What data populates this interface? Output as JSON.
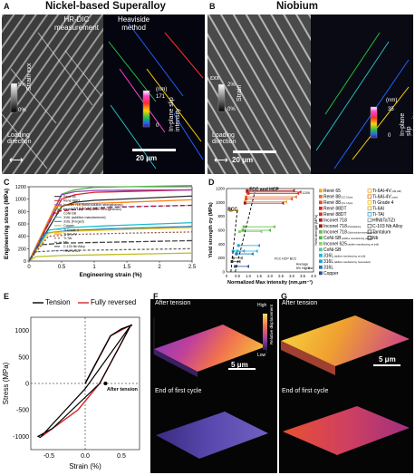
{
  "panels": {
    "A": "A",
    "B": "B",
    "C": "C",
    "D": "D",
    "E": "E",
    "F": "F",
    "G": "G"
  },
  "panel_a": {
    "title": "Nickel-based Superalloy",
    "left_label": "HR-DIC\nmeasurement",
    "right_label": "Heaviside\nmethod",
    "strain_max": "5%",
    "strain_min": "0%",
    "strain_title": "Strain εxx",
    "slip_unit": "(nm)",
    "slip_max": "171",
    "slip_min": "0",
    "slip_title": "In-plane slip\nintensity",
    "loading": "Loading\ndirection",
    "scale": "20 μm"
  },
  "panel_b": {
    "title": "Niobium",
    "strain_top": "εxx",
    "strain_max": "2%",
    "strain_min": "0%",
    "strain_title": "Strain",
    "slip_unit": "(nm)",
    "slip_max": "35",
    "slip_min": "0",
    "slip_title": "In-plane slip\nintensity",
    "loading": "Loading\ndirection",
    "scale": "20 μm"
  },
  "panel_f": {
    "after": "After tension",
    "end": "End of first cycle",
    "scale": "5 μm",
    "high": "High",
    "low": "Low",
    "axis": "Relative displacement"
  },
  "panel_g": {
    "after": "After tension",
    "end": "End of first cycle",
    "scale": "5 μm"
  },
  "chart_data": [
    {
      "type": "line",
      "id": "C",
      "xlabel": "Engineering strain (%)",
      "ylabel": "Engineering stress (MPa)",
      "xlim": [
        0,
        2.5
      ],
      "ylim": [
        0,
        1200
      ],
      "xticks": [
        "0",
        "0.5",
        "1",
        "1.5",
        "2",
        "2.5"
      ],
      "yticks": [
        "0",
        "200",
        "400",
        "600",
        "800",
        "1000",
        "1200"
      ],
      "legend": [
        "René 65",
        "René 88DT",
        "Inconel 718 (Solid-solution strengthened)",
        "Inconel 718 (Precipitation strengthened)",
        "CoNi-SB",
        "316L (additive manufactured)",
        "316L (Forged)",
        "Copper",
        "Ti Grade 4",
        "Ti-6Al-4V",
        "Ti-TAl",
        "Nb",
        "C-103 Nb Alloy",
        "HfNbTaTiZr"
      ],
      "series": [
        {
          "name": "René 65",
          "color": "#2a2a2a",
          "dash": "",
          "x": [
            0,
            0.5,
            0.7,
            1,
            2.5
          ],
          "y": [
            0,
            880,
            950,
            980,
            1050
          ]
        },
        {
          "name": "René 88DT",
          "color": "#d62728",
          "dash": "",
          "x": [
            0,
            0.5,
            0.7,
            1,
            2.5
          ],
          "y": [
            0,
            1000,
            1070,
            1110,
            1150
          ]
        },
        {
          "name": "Inconel 718 (Precipitation strengthened)",
          "color": "#4db848",
          "dash": "",
          "x": [
            0,
            0.5,
            0.7,
            1,
            2.5
          ],
          "y": [
            0,
            1080,
            1150,
            1190,
            1220
          ]
        },
        {
          "name": "Inconel 718 (Solid-solution strengthened)",
          "color": "#9b3fb8",
          "dash": "",
          "x": [
            0,
            0.5,
            0.7,
            1,
            2.5
          ],
          "y": [
            0,
            1070,
            1120,
            1140,
            1150
          ]
        },
        {
          "name": "CoNi-SB",
          "color": "#c00000",
          "dash": "5,3",
          "x": [
            0,
            0.4,
            0.7,
            1.3,
            2.5
          ],
          "y": [
            0,
            800,
            830,
            870,
            900
          ]
        },
        {
          "name": "316L (additive manufactured)",
          "color": "#17becf",
          "dash": "",
          "x": [
            0,
            0.3,
            0.6,
            1.2,
            2.5
          ],
          "y": [
            0,
            500,
            540,
            570,
            620
          ]
        },
        {
          "name": "316L (Forged)",
          "color": "#1f77b4",
          "dash": "",
          "x": [
            0,
            0.25,
            0.6,
            1.2,
            2.5
          ],
          "y": [
            0,
            450,
            490,
            520,
            560
          ]
        },
        {
          "name": "Ti-6Al-4V",
          "color": "#ff7f0e",
          "dash": "",
          "x": [
            0,
            0.4,
            0.7,
            1.5,
            2.5
          ],
          "y": [
            0,
            880,
            920,
            950,
            990
          ]
        },
        {
          "name": "Ti Grade 4",
          "color": "#f0c419",
          "dash": "",
          "x": [
            0,
            0.3,
            0.6,
            1.5,
            2.5
          ],
          "y": [
            0,
            450,
            480,
            510,
            540
          ]
        },
        {
          "name": "Ti-TAl",
          "color": "#8c564b",
          "dash": "2,2",
          "x": [
            0,
            0.3,
            0.7,
            1.5,
            2.5
          ],
          "y": [
            0,
            400,
            430,
            450,
            470
          ]
        },
        {
          "name": "Copper",
          "color": "#bcbd22",
          "dash": "",
          "x": [
            0,
            0.1,
            0.5,
            1.5,
            2.5
          ],
          "y": [
            0,
            70,
            90,
            110,
            130
          ]
        },
        {
          "name": "Nb",
          "color": "#666666",
          "dash": "3,2",
          "x": [
            0,
            0.1,
            0.5,
            1.5,
            2.5
          ],
          "y": [
            0,
            150,
            170,
            185,
            200
          ]
        },
        {
          "name": "C-103 Nb Alloy",
          "color": "#444444",
          "dash": "6,2",
          "x": [
            0,
            0.15,
            0.5,
            1.5,
            2.5
          ],
          "y": [
            0,
            260,
            290,
            310,
            330
          ]
        },
        {
          "name": "HfNbTaTiZr",
          "color": "#3a5fcd",
          "dash": "1,2",
          "x": [
            0,
            0.4,
            0.7,
            1.5,
            2.5
          ],
          "y": [
            0,
            820,
            860,
            880,
            900
          ]
        }
      ]
    },
    {
      "type": "scatter",
      "id": "D",
      "xlabel": "Normalized Max intensity (nm.μm⁻¹)",
      "ylabel": "Yield strength σy (MPa)",
      "xlim": [
        0,
        4
      ],
      "ylim": [
        0,
        1200
      ],
      "xticks": [
        "0",
        "0.5",
        "1.0",
        "1.5",
        "2.0",
        "2.5",
        "3.0",
        "3.5",
        "4.0"
      ],
      "yticks": [
        "0",
        "200",
        "400",
        "600",
        "800",
        "1000",
        "1200"
      ],
      "annotations": [
        "FCC and HCP",
        "BCC"
      ],
      "key_title": "FCC  HCP  BCC",
      "key_rows": [
        "Average",
        "5% Highest"
      ],
      "inset": {
        "ylabel": "Yield strength (MPa)",
        "ymax": "1200",
        "ymin": "0"
      },
      "points": [
        {
          "name": "René 65",
          "color": "#f5a623",
          "avg": [
            0.85,
            1010
          ],
          "high": [
            2.75,
            1010
          ]
        },
        {
          "name": "René 88",
          "color": "#e8702a",
          "avg": [
            0.9,
            1080
          ],
          "high": [
            3.2,
            1080
          ]
        },
        {
          "name": "René 88 (2)",
          "color": "#e04e1f",
          "avg": [
            0.9,
            1050
          ],
          "high": [
            3.0,
            1050
          ]
        },
        {
          "name": "René 88DT",
          "color": "#d62728",
          "avg": [
            1.0,
            1130
          ],
          "high": [
            3.3,
            1130
          ]
        },
        {
          "name": "René 88DT (2)",
          "color": "#c0392b",
          "avg": [
            0.95,
            1150
          ],
          "high": [
            3.4,
            1150
          ]
        },
        {
          "name": "Inconel 718",
          "color": "#b02020",
          "avg": [
            0.95,
            1170
          ],
          "high": [
            3.1,
            1170
          ]
        },
        {
          "name": "Inconel 718 (2)",
          "color": "#9a1a1a",
          "avg": [
            0.85,
            990
          ],
          "high": [
            2.6,
            990
          ]
        },
        {
          "name": "Inconel 718 ss",
          "color": "#6abf45",
          "avg": [
            0.8,
            650
          ],
          "high": [
            2.2,
            650
          ]
        },
        {
          "name": "CoNi-SB",
          "color": "#4db848",
          "avg": [
            0.75,
            600
          ],
          "high": [
            2.0,
            600
          ]
        },
        {
          "name": "Inconel 625",
          "color": "#8fd16a",
          "avg": [
            0.6,
            580
          ],
          "high": [
            1.6,
            580
          ]
        },
        {
          "name": "316L",
          "color": "#17becf",
          "avg": [
            0.5,
            300
          ],
          "high": [
            1.4,
            300
          ]
        },
        {
          "name": "316L (2)",
          "color": "#1f9fd6",
          "avg": [
            0.55,
            380
          ],
          "high": [
            1.5,
            380
          ]
        },
        {
          "name": "316L (3)",
          "color": "#1f77b4",
          "avg": [
            0.45,
            260
          ],
          "high": [
            1.2,
            260
          ]
        },
        {
          "name": "Copper",
          "color": "#2c4f8f",
          "avg": [
            0.4,
            80
          ],
          "high": [
            1.0,
            80
          ]
        },
        {
          "name": "Ti-6Al-4V",
          "color": "#f5a623",
          "avg": [
            0.2,
            880
          ],
          "high": [
            0.5,
            880
          ]
        },
        {
          "name": "Ti-TAl",
          "color": "#3aa0d8",
          "avg": [
            0.3,
            300
          ],
          "high": [
            0.8,
            300
          ]
        },
        {
          "name": "Nb",
          "color": "#555555",
          "avg": [
            0.25,
            150
          ],
          "high": [
            0.6,
            150
          ]
        },
        {
          "name": "Tantalum",
          "color": "#777777",
          "avg": [
            0.3,
            200
          ],
          "high": [
            0.7,
            200
          ]
        }
      ],
      "legend": [
        {
          "label": "René 65",
          "sub": "",
          "color": "#f5a623"
        },
        {
          "label": "René 88",
          "sub": "(CG: 61μm)",
          "color": "#e8702a"
        },
        {
          "label": "René 88",
          "sub": "(CG: 13μm)",
          "color": "#e04e1f"
        },
        {
          "label": "René 88DT",
          "sub": "",
          "color": "#d62728"
        },
        {
          "label": "René 88DT",
          "sub": "",
          "color": "#c0392b"
        },
        {
          "label": "Inconel 718",
          "sub": "",
          "color": "#b02020"
        },
        {
          "label": "Inconel 718",
          "sub": "(Precipitation)",
          "color": "#9a1a1a"
        },
        {
          "label": "Inconel 718",
          "sub": "(Solid-solution strengthened)",
          "color": "#6abf45"
        },
        {
          "label": "CoNi-SB",
          "sub": "(additive manufacturing, as built)",
          "color": "#4db848"
        },
        {
          "label": "Inconel 625",
          "sub": "(additive manufacturing, as built)",
          "color": "#8fd16a"
        },
        {
          "label": "CoNi-SB",
          "sub": "",
          "color": "#5ec2a0"
        },
        {
          "label": "316L",
          "sub": "(additive manufacturing, as built)",
          "color": "#17becf"
        },
        {
          "label": "316L",
          "sub": "(additive manufacturing, heat-treated)",
          "color": "#1f9fd6"
        },
        {
          "label": "316L",
          "sub": "",
          "color": "#1f77b4"
        },
        {
          "label": "Copper",
          "sub": "",
          "color": "#2c4f8f"
        }
      ],
      "legend2": [
        {
          "label": "Ti-6Al-4V",
          "sub": "(AM,HIP)",
          "color": "#f5a623"
        },
        {
          "label": "Ti-6Al-4V",
          "sub": "(cast)",
          "color": "#e8702a"
        },
        {
          "label": "Ti Grade 4",
          "sub": "",
          "color": "#f0c419"
        },
        {
          "label": "Ti-6Al",
          "sub": "",
          "color": "#d4a017"
        },
        {
          "label": "Ti-TAl",
          "sub": "",
          "color": "#3aa0d8"
        },
        {
          "label": "HfNbTaTiZr",
          "sub": "",
          "color": "#888888"
        },
        {
          "label": "C-103 Nb Alloy",
          "sub": "",
          "color": "#666666"
        },
        {
          "label": "Tantalum",
          "sub": "",
          "color": "#555555"
        },
        {
          "label": "Nb",
          "sub": "",
          "color": "#333333"
        }
      ]
    },
    {
      "type": "line",
      "id": "E",
      "legend": [
        "Tension",
        "Fully reversed"
      ],
      "xlabel": "Strain (%)",
      "ylabel": "Stress (MPa)",
      "xlim": [
        -0.75,
        0.75
      ],
      "ylim": [
        -1250,
        1250
      ],
      "xticks": [
        "-0.5",
        "0.0",
        "0.5"
      ],
      "yticks": [
        "-1000",
        "-500",
        "0",
        "500",
        "1000"
      ],
      "annotation": "After tension",
      "tension": {
        "color": "#000000",
        "x": [
          0,
          0.35,
          0.5,
          0.6,
          0.65
        ],
        "y": [
          0,
          900,
          1030,
          1080,
          1100
        ]
      },
      "reversed": {
        "color": "#d62728",
        "x": [
          0,
          0.35,
          0.6,
          0.63,
          0.2,
          -0.1,
          -0.5,
          -0.6
        ],
        "y": [
          0,
          900,
          1080,
          1100,
          0,
          -500,
          -900,
          -1000
        ]
      },
      "unload": {
        "color": "#000000",
        "x": [
          0.63,
          0.2,
          -0.45,
          -0.65,
          -0.62,
          0.0,
          0.63
        ],
        "y": [
          1100,
          0,
          -850,
          -1000,
          -1020,
          -100,
          1100
        ]
      }
    }
  ]
}
